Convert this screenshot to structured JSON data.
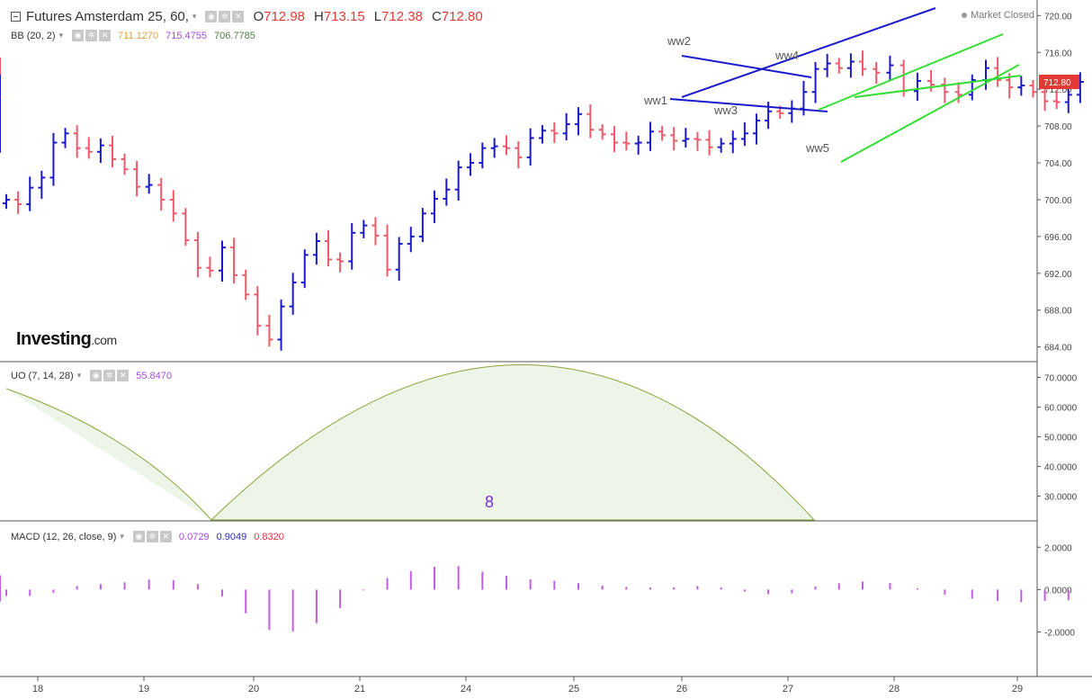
{
  "instrument": {
    "title": "Futures Amsterdam 25, 60,",
    "ohlc": {
      "o_label": "O",
      "o": "712.98",
      "h_label": "H",
      "h": "713.15",
      "l_label": "L",
      "l": "712.38",
      "c_label": "C",
      "c": "712.80"
    },
    "market_status": "Market Closed",
    "price_tag": "712.80"
  },
  "indicators": {
    "bb": {
      "label": "BB (20, 2)",
      "v1": "711.1270",
      "v2": "715.4755",
      "v3": "706.7785"
    },
    "uo": {
      "label": "UO (7, 14, 28)",
      "v1": "55.8470"
    },
    "macd": {
      "label": "MACD (12, 26, close, 9)",
      "v1": "0.0729",
      "v2": "0.9049",
      "v3": "0.8320"
    }
  },
  "brand": {
    "name": "Investing",
    "suffix": ".com"
  },
  "annotations": {
    "waves": [
      "ww1",
      "ww2",
      "ww3",
      "ww4",
      "ww5"
    ],
    "uo_cycle": "8"
  },
  "colors": {
    "up": "#1a1acb",
    "down": "#ef5a6a",
    "bb_upper": "#b44ee8",
    "bb_mid": "#f2b26a",
    "bb_lower": "#6f9a64",
    "uo": "#b44ee8",
    "macd": "#5a5ae8",
    "signal": "#ef4f4f",
    "hist": "#c05ee0",
    "trend_blue": "#1a1acb",
    "trend_green": "#33dd33",
    "price_tag": "#e53935"
  },
  "chart_data": [
    {
      "type": "candlestick",
      "panel": "price",
      "x_ticks": [
        "18",
        "19",
        "20",
        "21",
        "24",
        "25",
        "26",
        "27",
        "28",
        "29"
      ],
      "y_ticks": [
        "720.00",
        "716.00",
        "712.00",
        "708.00",
        "704.00",
        "700.00",
        "696.00",
        "692.00",
        "688.00",
        "684.00"
      ],
      "ylim": [
        682.5,
        721.5
      ],
      "bars_per_day": 9,
      "close": [
        700.0,
        699.5,
        701.3,
        702.4,
        706.2,
        707.2,
        705.6,
        705.2,
        705.9,
        704.4,
        703.3,
        701.4,
        701.6,
        700.0,
        698.5,
        695.6,
        692.6,
        692.3,
        694.8,
        691.8,
        689.7,
        686.3,
        684.8,
        688.4,
        691.0,
        694.0,
        695.5,
        693.5,
        693.3,
        696.4,
        697.2,
        696.1,
        692.4,
        695.2,
        696.0,
        698.5,
        700.1,
        701.1,
        703.5,
        704.0,
        705.6,
        705.8,
        705.6,
        704.6,
        706.7,
        707.5,
        707.2,
        708.2,
        709.3,
        707.6,
        707.1,
        706.2,
        706.1,
        706.2,
        707.4,
        707.0,
        706.4,
        706.6,
        706.5,
        705.7,
        706.1,
        706.6,
        707.2,
        708.6,
        709.6,
        709.4,
        709.9,
        711.7,
        714.2,
        714.8,
        714.3,
        715.0,
        714.2,
        713.8,
        714.6,
        711.8,
        712.9,
        712.5,
        711.7,
        711.4,
        713.0,
        714.3,
        713.0,
        712.2,
        712.4,
        711.7,
        710.7,
        710.6,
        711.4,
        712.8,
        711.8,
        713.0,
        712.5,
        709.7,
        708.4,
        706.9,
        706.4,
        706.3,
        706.8,
        708.2,
        709.4,
        710.4,
        709.0,
        707.7,
        707.3,
        706.6,
        706.9,
        709.2,
        710.1,
        710.5,
        711.4,
        712.5,
        714.0,
        714.4,
        713.6,
        712.7,
        712.2,
        712.4,
        712.8
      ],
      "overlays": {
        "bb_upper": [
          710.3,
          709.9,
          709.0,
          709.4,
          710.4,
          711.7,
          715.3,
          712.3,
          710.1,
          708.4,
          706.7,
          702.9,
          700.4,
          697.6,
          697.4,
          697.8,
          703.3,
          707.3,
          709.5,
          712.2,
          711.0,
          710.0,
          710.6,
          710.2,
          707.8,
          710.6,
          710.8,
          711.2,
          712.2,
          713.8,
          713.2,
          715.4,
          714.2,
          714.2,
          713.5,
          712.8,
          712.5,
          713.2,
          713.4,
          715.8,
          716.2,
          714.6,
          714.0,
          713.6,
          713.4,
          714.0,
          712.0,
          713.1,
          712.8,
          712.4,
          715.5
        ],
        "bb_mid": [
          702.0,
          702.2,
          702.4,
          702.8,
          703.2,
          702.5,
          700.5,
          697.3,
          694.6,
          693.9,
          693.9,
          693.2,
          695.0,
          698.2,
          700.4,
          702.7,
          705.1,
          706.2,
          706.0,
          706.9,
          706.7,
          707.5,
          708.5,
          709.0,
          710.6,
          711.8,
          711.2,
          711.9,
          712.4,
          712.5,
          712.6,
          711.7,
          711.6,
          711.0,
          709.3,
          708.7,
          708.8,
          709.2,
          709.7,
          709.8,
          710.3,
          711.2
        ],
        "bb_lower": [
          695.7,
          695.2,
          695.4,
          694.9,
          694.6,
          694.4,
          693.3,
          690.1,
          686.8,
          684.3,
          683.8,
          683.6,
          684.7,
          686.2,
          687.0,
          685.7,
          690.1,
          693.9,
          697.7,
          701.3,
          703.2,
          704.1,
          704.7,
          705.6,
          705.8,
          703.8,
          703.7,
          704.5,
          704.6,
          705.3,
          705.9,
          709.1,
          709.7,
          709.1,
          706.9,
          705.8,
          705.4,
          705.0,
          704.9,
          705.2,
          706.1,
          706.8
        ]
      }
    },
    {
      "type": "line",
      "panel": "uo",
      "y_ticks": [
        "70.0000",
        "60.0000",
        "50.0000",
        "40.0000",
        "30.0000"
      ],
      "ylim": [
        22,
        75
      ],
      "series": [
        {
          "values": [
            50,
            56,
            62,
            61,
            64,
            57,
            48,
            48,
            41,
            31,
            27,
            27,
            25,
            39,
            57,
            53,
            61,
            70,
            72,
            61,
            56,
            62,
            59,
            56,
            53,
            50,
            56,
            53,
            57,
            62,
            66,
            63,
            58,
            46,
            50,
            45,
            50,
            60,
            41,
            39,
            32,
            44,
            46,
            40,
            30,
            36,
            48,
            49,
            50,
            66,
            72,
            69,
            63,
            60,
            56
          ]
        }
      ]
    },
    {
      "type": "line",
      "panel": "macd",
      "y_ticks": [
        "2.0000",
        "0.0000",
        "-2.0000"
      ],
      "ylim": [
        -4.1,
        3.2
      ],
      "series": [
        {
          "values": [
            1.7,
            1.4,
            2.0,
            2.1,
            1.6,
            0.5,
            -1.7,
            -3.5,
            -2.5,
            -1.4,
            -0.9,
            0.6,
            1.9,
            2.3,
            2.5,
            2.8,
            2.2,
            1.8,
            2.0,
            1.9,
            1.5,
            1.6,
            1.8,
            2.4,
            2.5,
            2.2,
            1.5,
            0.8,
            0.5,
            0.4,
            -0.5,
            -1.0,
            -0.8,
            -0.9,
            -0.6,
            0.0,
            0.7,
            0.9,
            0.9
          ]
        },
        {
          "values": [
            1.8,
            1.6,
            1.7,
            1.8,
            1.8,
            1.6,
            0.4,
            -2.2,
            -2.8,
            -2.4,
            -1.2,
            0.1,
            1.3,
            2.1,
            2.4,
            2.5,
            2.5,
            2.2,
            1.9,
            1.7,
            1.6,
            1.6,
            1.7,
            2.0,
            2.3,
            2.4,
            2.0,
            1.4,
            0.9,
            0.5,
            -0.1,
            -0.6,
            -0.8,
            -0.8,
            -0.5,
            0.0,
            0.5,
            0.8,
            0.8
          ]
        },
        {
          "type": "bar",
          "values": [
            -0.3,
            -0.3,
            0.2,
            0.3,
            0.5,
            0.4,
            -0.5,
            -1.9,
            -2.0,
            -0.9,
            0.4,
            0.9,
            1.2,
            0.8,
            0.5,
            0.4,
            0.2,
            0.1,
            0.1,
            0.2,
            -0.1,
            -0.3,
            0.2,
            0.4,
            0.3,
            -0.2,
            -0.5,
            -0.6,
            -0.5,
            -0.5,
            -0.6,
            -0.4,
            -0.1,
            0.0,
            0.2,
            0.6,
            0.7,
            0.4,
            0.1
          ]
        }
      ]
    }
  ]
}
